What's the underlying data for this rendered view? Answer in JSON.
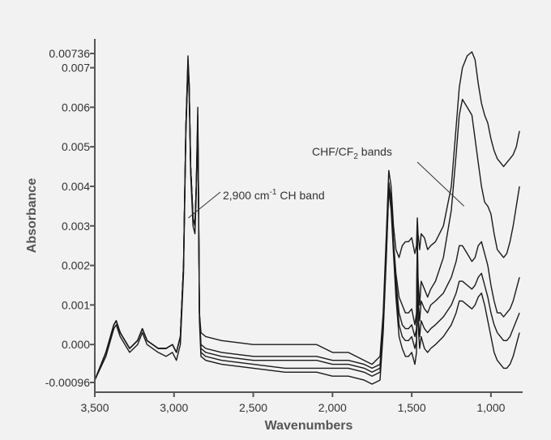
{
  "chart_data": {
    "type": "line",
    "title": "",
    "xlabel": "Wavenumbers",
    "ylabel": "Absorbance",
    "xlim": [
      3500,
      800
    ],
    "ylim": [
      -0.00096,
      0.00736
    ],
    "x_reversed": true,
    "grid": false,
    "x_ticks": [
      3500,
      3000,
      2500,
      2000,
      1500,
      1000
    ],
    "x_tick_labels": [
      "3,500",
      "3,000",
      "2,500",
      "2,000",
      "1,500",
      "1,000"
    ],
    "y_ticks": [
      -0.00096,
      0.0,
      0.001,
      0.002,
      0.003,
      0.004,
      0.005,
      0.006,
      0.007,
      0.00736
    ],
    "y_tick_labels": [
      "-0.00096",
      "0.000",
      "0.001",
      "0.002",
      "0.003",
      "0.004",
      "0.005",
      "0.006",
      "0.007",
      "0.00736"
    ],
    "annotations": [
      {
        "label": "2,900 cm",
        "sup": "-1",
        "tail": " CH band",
        "point": [
          2910,
          0.0032
        ]
      },
      {
        "label": "CHF/CF",
        "sub": "2",
        "tail": " bands",
        "point": [
          1170,
          0.0035
        ]
      }
    ],
    "line_color": "#1a1a1a",
    "series": [
      {
        "x": [
          3500,
          3430,
          3380,
          3365,
          3340,
          3280,
          3230,
          3200,
          3170,
          3100,
          3050,
          3010,
          2985,
          2960,
          2940,
          2925,
          2912,
          2905,
          2895,
          2880,
          2868,
          2860,
          2850,
          2845,
          2840,
          2830,
          2800,
          2700,
          2500,
          2300,
          2100,
          2000,
          1900,
          1800,
          1750,
          1700,
          1680,
          1660,
          1645,
          1630,
          1615,
          1600,
          1580,
          1560,
          1540,
          1520,
          1500,
          1480,
          1470,
          1465,
          1460,
          1450,
          1440,
          1420,
          1400,
          1380,
          1350,
          1300,
          1250,
          1220,
          1200,
          1180,
          1150,
          1120,
          1100,
          1080,
          1060,
          1040,
          1020,
          1000,
          980,
          960,
          940,
          920,
          900,
          880,
          860,
          840,
          820
        ],
        "y": [
          -0.0009,
          -0.0002,
          0.0005,
          0.0006,
          0.0003,
          -0.0001,
          0.0001,
          0.0004,
          0.0001,
          -0.0001,
          -0.0001,
          0.0,
          -0.0002,
          0.0002,
          0.002,
          0.0055,
          0.0073,
          0.0066,
          0.0045,
          0.0032,
          0.003,
          0.004,
          0.006,
          0.0035,
          0.0008,
          0.0003,
          0.0002,
          0.0001,
          0.0,
          0.0,
          0.0,
          -0.0002,
          -0.0002,
          -0.0004,
          -0.0005,
          -0.0003,
          0.0008,
          0.0028,
          0.0044,
          0.004,
          0.003,
          0.0024,
          0.0022,
          0.0025,
          0.0026,
          0.0026,
          0.0027,
          0.0023,
          0.0025,
          0.0032,
          0.0028,
          0.0024,
          0.0028,
          0.0027,
          0.0024,
          0.0025,
          0.0026,
          0.003,
          0.004,
          0.0055,
          0.0065,
          0.007,
          0.0073,
          0.0074,
          0.0072,
          0.0066,
          0.0061,
          0.0058,
          0.0056,
          0.0052,
          0.0049,
          0.0047,
          0.0046,
          0.0045,
          0.0046,
          0.0047,
          0.0048,
          0.005,
          0.0054
        ]
      },
      {
        "x": [
          3500,
          3430,
          3380,
          3365,
          3340,
          3280,
          3230,
          3200,
          3170,
          3100,
          3050,
          3010,
          2985,
          2960,
          2940,
          2925,
          2912,
          2905,
          2895,
          2880,
          2868,
          2860,
          2850,
          2845,
          2840,
          2830,
          2800,
          2700,
          2500,
          2300,
          2100,
          2000,
          1900,
          1800,
          1750,
          1700,
          1680,
          1660,
          1645,
          1630,
          1615,
          1600,
          1580,
          1560,
          1540,
          1520,
          1500,
          1480,
          1470,
          1465,
          1460,
          1450,
          1440,
          1420,
          1400,
          1380,
          1350,
          1300,
          1250,
          1220,
          1200,
          1180,
          1150,
          1120,
          1100,
          1080,
          1060,
          1040,
          1020,
          1000,
          980,
          960,
          940,
          920,
          900,
          880,
          860,
          840,
          820
        ],
        "y": [
          -0.0009,
          -0.0002,
          0.0005,
          0.0006,
          0.0003,
          -0.0001,
          0.0001,
          0.0004,
          0.0001,
          -0.0001,
          -0.0001,
          0.0,
          -0.0002,
          0.0002,
          0.002,
          0.0055,
          0.0072,
          0.0066,
          0.0045,
          0.0032,
          0.003,
          0.004,
          0.0058,
          0.0035,
          0.0008,
          0.0,
          -0.0001,
          -0.0002,
          -0.0003,
          -0.0003,
          -0.0003,
          -0.0004,
          -0.0004,
          -0.0005,
          -0.0006,
          -0.0005,
          0.0005,
          0.0024,
          0.004,
          0.0036,
          0.0026,
          0.0018,
          0.0012,
          0.001,
          0.0008,
          0.0008,
          0.0009,
          0.0005,
          0.0008,
          0.0027,
          0.0017,
          0.001,
          0.0016,
          0.0014,
          0.0012,
          0.0014,
          0.0016,
          0.0022,
          0.0034,
          0.0048,
          0.0058,
          0.0062,
          0.006,
          0.0058,
          0.0052,
          0.0046,
          0.004,
          0.0036,
          0.0035,
          0.0033,
          0.0028,
          0.0024,
          0.0023,
          0.0022,
          0.0023,
          0.0026,
          0.003,
          0.0035,
          0.004
        ]
      },
      {
        "x": [
          3500,
          3430,
          3380,
          3365,
          3340,
          3280,
          3230,
          3200,
          3170,
          3100,
          3050,
          3010,
          2985,
          2960,
          2940,
          2925,
          2912,
          2905,
          2895,
          2880,
          2868,
          2860,
          2850,
          2845,
          2840,
          2830,
          2800,
          2700,
          2500,
          2300,
          2100,
          2000,
          1900,
          1800,
          1750,
          1700,
          1680,
          1660,
          1645,
          1630,
          1615,
          1600,
          1580,
          1560,
          1540,
          1520,
          1500,
          1480,
          1470,
          1465,
          1460,
          1450,
          1440,
          1420,
          1400,
          1380,
          1350,
          1300,
          1250,
          1220,
          1200,
          1180,
          1150,
          1120,
          1100,
          1080,
          1060,
          1040,
          1020,
          1000,
          980,
          960,
          940,
          920,
          900,
          880,
          860,
          840,
          820
        ],
        "y": [
          -0.0009,
          -0.0002,
          0.0005,
          0.0006,
          0.0003,
          -0.0001,
          0.0001,
          0.0004,
          0.0001,
          -0.0001,
          -0.0001,
          0.0,
          -0.0002,
          0.0002,
          0.002,
          0.0055,
          0.0071,
          0.0066,
          0.0045,
          0.0032,
          0.003,
          0.004,
          0.0056,
          0.0035,
          0.0008,
          -0.0001,
          -0.0002,
          -0.0003,
          -0.0004,
          -0.0004,
          -0.0004,
          -0.0005,
          -0.0005,
          -0.0006,
          -0.0007,
          -0.0006,
          0.0005,
          0.0024,
          0.0041,
          0.0037,
          0.0026,
          0.0016,
          0.0008,
          0.0005,
          0.0004,
          0.0004,
          0.0005,
          0.0002,
          0.0004,
          0.0029,
          0.0012,
          0.0006,
          0.0011,
          0.0009,
          0.0008,
          0.001,
          0.0011,
          0.0013,
          0.0017,
          0.0021,
          0.0025,
          0.0025,
          0.0023,
          0.0021,
          0.0022,
          0.0025,
          0.0026,
          0.0023,
          0.002,
          0.0015,
          0.0011,
          0.0008,
          0.0008,
          0.0007,
          0.0008,
          0.0009,
          0.0011,
          0.0014,
          0.0017
        ]
      },
      {
        "x": [
          3500,
          3430,
          3380,
          3365,
          3340,
          3280,
          3230,
          3200,
          3170,
          3100,
          3050,
          3010,
          2985,
          2960,
          2940,
          2925,
          2912,
          2905,
          2895,
          2880,
          2868,
          2860,
          2850,
          2845,
          2840,
          2830,
          2800,
          2700,
          2500,
          2300,
          2100,
          2000,
          1900,
          1800,
          1750,
          1700,
          1680,
          1660,
          1645,
          1630,
          1615,
          1600,
          1580,
          1560,
          1540,
          1520,
          1500,
          1480,
          1470,
          1465,
          1460,
          1450,
          1440,
          1420,
          1400,
          1380,
          1350,
          1300,
          1250,
          1220,
          1200,
          1180,
          1150,
          1120,
          1100,
          1080,
          1060,
          1040,
          1020,
          1000,
          980,
          960,
          940,
          920,
          900,
          880,
          860,
          840,
          820
        ],
        "y": [
          -0.0009,
          -0.0002,
          0.0005,
          0.0006,
          0.0003,
          -0.0001,
          0.0001,
          0.0004,
          0.0001,
          -0.0001,
          -0.0001,
          0.0,
          -0.0002,
          0.0002,
          0.002,
          0.0055,
          0.007,
          0.0066,
          0.0045,
          0.0032,
          0.003,
          0.004,
          0.0055,
          0.0035,
          0.0008,
          -0.0002,
          -0.0003,
          -0.0004,
          -0.0005,
          -0.0006,
          -0.0006,
          -0.0006,
          -0.0006,
          -0.0007,
          -0.0008,
          -0.0007,
          0.0004,
          0.0023,
          0.004,
          0.0036,
          0.0025,
          0.0015,
          0.0005,
          0.0002,
          0.0001,
          0.0001,
          0.0002,
          -0.0001,
          0.0001,
          0.0028,
          0.0008,
          0.0002,
          0.0006,
          0.0004,
          0.0003,
          0.0004,
          0.0005,
          0.0007,
          0.001,
          0.0013,
          0.0016,
          0.0016,
          0.0015,
          0.0014,
          0.0015,
          0.0017,
          0.0018,
          0.0015,
          0.0012,
          0.0008,
          0.0005,
          0.0003,
          0.0002,
          0.0001,
          0.0001,
          0.0002,
          0.0004,
          0.0006,
          0.0008
        ]
      },
      {
        "x": [
          3500,
          3430,
          3380,
          3365,
          3340,
          3280,
          3230,
          3200,
          3170,
          3100,
          3050,
          3010,
          2985,
          2960,
          2940,
          2925,
          2912,
          2905,
          2895,
          2880,
          2868,
          2860,
          2850,
          2845,
          2840,
          2830,
          2800,
          2700,
          2500,
          2300,
          2100,
          2000,
          1900,
          1800,
          1750,
          1700,
          1680,
          1660,
          1645,
          1630,
          1615,
          1600,
          1580,
          1560,
          1540,
          1520,
          1500,
          1480,
          1470,
          1465,
          1460,
          1450,
          1440,
          1420,
          1400,
          1380,
          1350,
          1300,
          1250,
          1220,
          1200,
          1180,
          1150,
          1120,
          1100,
          1080,
          1060,
          1040,
          1020,
          1000,
          980,
          960,
          940,
          920,
          900,
          880,
          860,
          840,
          820
        ],
        "y": [
          -0.0009,
          -0.0003,
          0.0004,
          0.0005,
          0.0002,
          -0.0002,
          0.0,
          0.0003,
          0.0,
          -0.0002,
          -0.0003,
          -0.0002,
          -0.0004,
          0.0,
          0.0018,
          0.0053,
          0.007,
          0.0064,
          0.0043,
          0.003,
          0.0028,
          0.0038,
          0.0053,
          0.0033,
          0.0006,
          -0.0003,
          -0.0004,
          -0.0005,
          -0.0006,
          -0.0007,
          -0.0007,
          -0.0008,
          -0.0008,
          -0.0009,
          -0.001,
          -0.0009,
          0.0003,
          0.0022,
          0.0039,
          0.0034,
          0.0023,
          0.0012,
          0.0002,
          -0.0001,
          -0.0003,
          -0.0003,
          -0.0002,
          -0.0005,
          -0.0002,
          0.0026,
          0.0005,
          -0.0001,
          0.0002,
          -0.0001,
          -0.0002,
          -0.0001,
          0.0,
          0.0002,
          0.0005,
          0.0008,
          0.0011,
          0.0011,
          0.001,
          0.0009,
          0.001,
          0.0012,
          0.0013,
          0.001,
          0.0006,
          0.0002,
          -0.0002,
          -0.0004,
          -0.0005,
          -0.0006,
          -0.0006,
          -0.0005,
          -0.0003,
          0.0,
          0.0003
        ]
      }
    ]
  }
}
